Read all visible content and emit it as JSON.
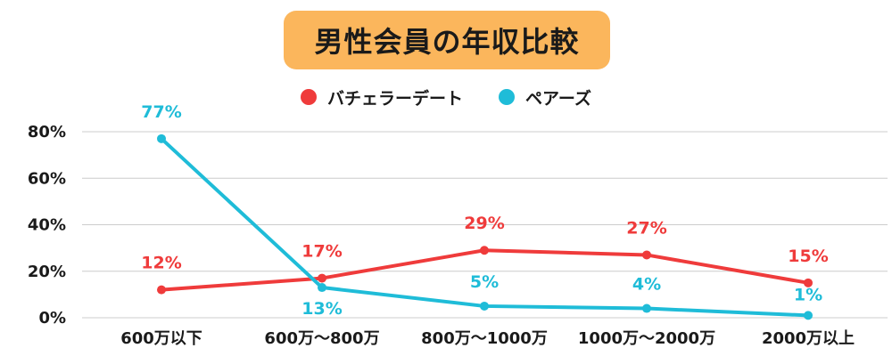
{
  "chart_data": {
    "type": "line",
    "title": "男性会員の年収比較",
    "categories": [
      "600万以下",
      "600万〜800万",
      "800万〜1000万",
      "1000万〜2000万",
      "2000万以上"
    ],
    "series": [
      {
        "name": "バチェラーデート",
        "color": "#ef3b3b",
        "values": [
          12,
          17,
          29,
          27,
          15
        ],
        "labels": [
          "12%",
          "17%",
          "29%",
          "27%",
          "15%"
        ]
      },
      {
        "name": "ペアーズ",
        "color": "#1fbcd8",
        "values": [
          77,
          13,
          5,
          4,
          1
        ],
        "labels": [
          "77%",
          "13%",
          "5%",
          "4%",
          "1%"
        ]
      }
    ],
    "ylim": [
      0,
      80
    ],
    "yticks": [
      0,
      20,
      40,
      60,
      80
    ],
    "ytick_labels": [
      "0%",
      "20%",
      "40%",
      "60%",
      "80%"
    ],
    "grid": true,
    "legend_position": "top-center",
    "xlabel": "",
    "ylabel": ""
  },
  "colors": {
    "title_bg": "#fbb65c",
    "grid": "#cccccc"
  }
}
